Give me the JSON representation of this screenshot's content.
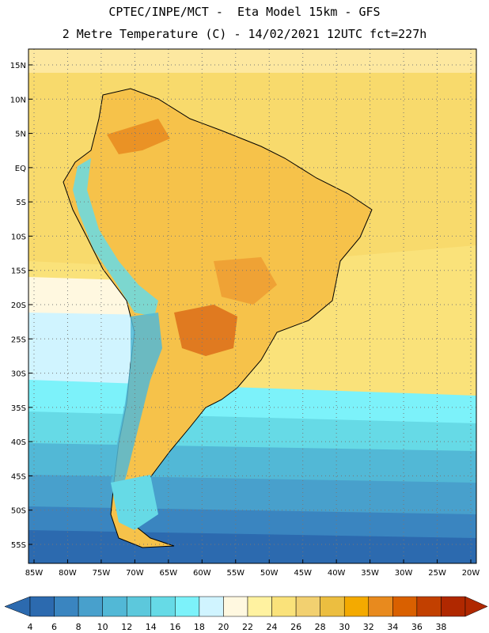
{
  "header": {
    "line1": "CPTEC/INPE/MCT -  Eta Model 15km - GFS",
    "line2": "2 Metre Temperature (C) - 14/02/2021 12UTC fct=227h"
  },
  "map": {
    "lat_labels": [
      "15N",
      "10N",
      "5N",
      "EQ",
      "5S",
      "10S",
      "15S",
      "20S",
      "25S",
      "30S",
      "35S",
      "40S",
      "45S",
      "50S",
      "55S"
    ],
    "lon_labels": [
      "85W",
      "80W",
      "75W",
      "70W",
      "65W",
      "60W",
      "55W",
      "50W",
      "45W",
      "40W",
      "35W",
      "30W",
      "25W",
      "20W"
    ]
  },
  "colorbar": {
    "ticks": [
      "4",
      "6",
      "8",
      "10",
      "12",
      "14",
      "16",
      "18",
      "20",
      "22",
      "24",
      "26",
      "28",
      "30",
      "32",
      "34",
      "36",
      "38"
    ],
    "colors": [
      "#2c6aaf",
      "#3a85c0",
      "#48a0cc",
      "#52b8d6",
      "#5cc8dc",
      "#66dae6",
      "#7cf2fa",
      "#d0f4ff",
      "#fff8e0",
      "#fff2a0",
      "#fae27a",
      "#f2d070",
      "#ecbe40",
      "#f4aa00",
      "#e88a1e",
      "#d96000",
      "#c24000",
      "#b02800"
    ]
  },
  "palette": {
    "warm": "#f8d970",
    "hot": "#ee9a30",
    "land": "#f6c24a",
    "andes_cool": "#66dae6",
    "ocean_cold": "#2c6aaf"
  }
}
